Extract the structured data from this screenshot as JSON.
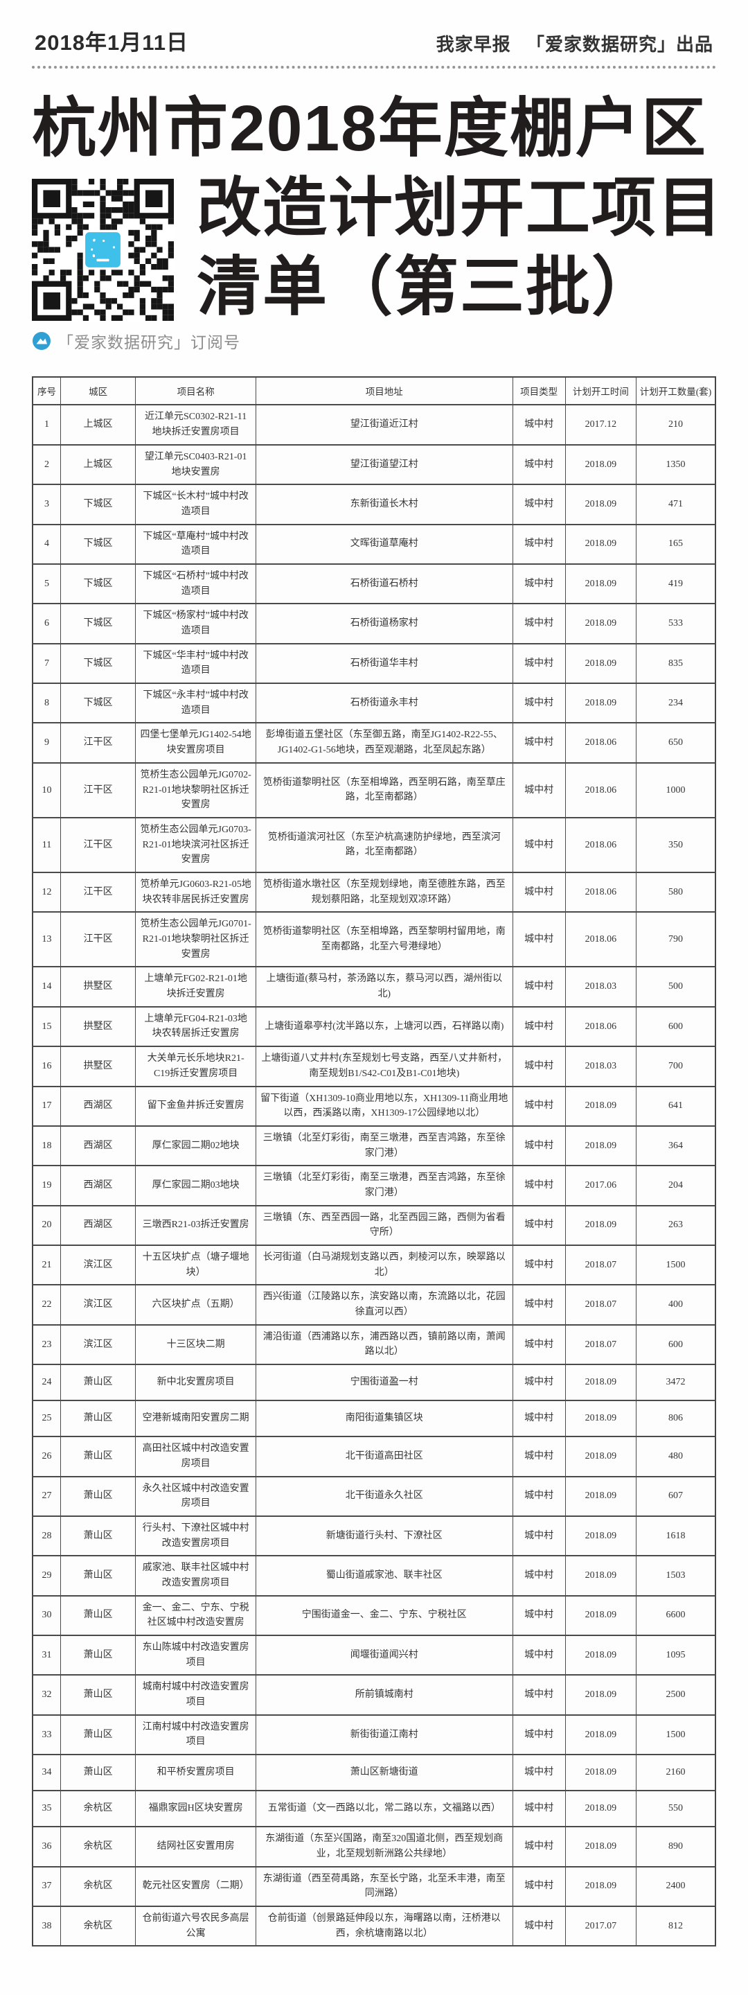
{
  "masthead": {
    "date": "2018年1月11日",
    "brand": "我家早报",
    "publisher": "「爱家数据研究」出品"
  },
  "title": {
    "line1": "杭州市2018年度棚户区",
    "line2": "改造计划开工项目",
    "line3": "清单（第三批）"
  },
  "qr": {
    "caption": "「爱家数据研究」订阅号"
  },
  "colors": {
    "logo_blue": "#2f9fd4",
    "qr_logo_cyan": "#3fc0ea",
    "qr_ink": "#161616",
    "border": "#4a4a4a",
    "title_ink": "#211d1d"
  },
  "table": {
    "col_keys": [
      "index",
      "district",
      "project_name",
      "project_address",
      "project_type",
      "planned_start_time",
      "planned_units"
    ],
    "headers": [
      "序号",
      "城区",
      "项目名称",
      "项目地址",
      "项目类型",
      "计划开工时间",
      "计划开工数量(套)"
    ],
    "rows": [
      [
        "1",
        "上城区",
        "近江单元SC0302-R21-11地块拆迁安置房项目",
        "望江街道近江村",
        "城中村",
        "2017.12",
        "210"
      ],
      [
        "2",
        "上城区",
        "望江单元SC0403-R21-01地块安置房",
        "望江街道望江村",
        "城中村",
        "2018.09",
        "1350"
      ],
      [
        "3",
        "下城区",
        "下城区“长木村”城中村改造项目",
        "东新街道长木村",
        "城中村",
        "2018.09",
        "471"
      ],
      [
        "4",
        "下城区",
        "下城区“草庵村”城中村改造项目",
        "文晖街道草庵村",
        "城中村",
        "2018.09",
        "165"
      ],
      [
        "5",
        "下城区",
        "下城区“石桥村”城中村改造项目",
        "石桥街道石桥村",
        "城中村",
        "2018.09",
        "419"
      ],
      [
        "6",
        "下城区",
        "下城区“杨家村”城中村改造项目",
        "石桥街道杨家村",
        "城中村",
        "2018.09",
        "533"
      ],
      [
        "7",
        "下城区",
        "下城区“华丰村”城中村改造项目",
        "石桥街道华丰村",
        "城中村",
        "2018.09",
        "835"
      ],
      [
        "8",
        "下城区",
        "下城区“永丰村”城中村改造项目",
        "石桥街道永丰村",
        "城中村",
        "2018.09",
        "234"
      ],
      [
        "9",
        "江干区",
        "四堡七堡单元JG1402-54地块安置房项目",
        "彭埠街道五堡社区（东至御五路，南至JG1402-R22-55、JG1402-G1-56地块，西至观潮路，北至凤起东路）",
        "城中村",
        "2018.06",
        "650"
      ],
      [
        "10",
        "江干区",
        "笕桥生态公园单元JG0702-R21-01地块黎明社区拆迁安置房",
        "笕桥街道黎明社区（东至相埠路，西至明石路，南至草庄路，北至南都路）",
        "城中村",
        "2018.06",
        "1000"
      ],
      [
        "11",
        "江干区",
        "笕桥生态公园单元JG0703-R21-01地块滨河社区拆迁安置房",
        "笕桥街道滨河社区（东至沪杭高速防护绿地，西至滨河路，北至南都路）",
        "城中村",
        "2018.06",
        "350"
      ],
      [
        "12",
        "江干区",
        "笕桥单元JG0603-R21-05地块农转非居民拆迁安置房",
        "笕桥街道水墩社区（东至规划绿地，南至德胜东路，西至规划蔡阳路，北至规划双凉环路）",
        "城中村",
        "2018.06",
        "580"
      ],
      [
        "13",
        "江干区",
        "笕桥生态公园单元JG0701-R21-01地块黎明社区拆迁安置房",
        "笕桥街道黎明社区（东至相埠路，西至黎明村留用地，南至南都路，北至六号港绿地）",
        "城中村",
        "2018.06",
        "790"
      ],
      [
        "14",
        "拱墅区",
        "上塘单元FG02-R21-01地块拆迁安置房",
        "上塘街道(蔡马村，茶汤路以东，蔡马河以西，湖州街以北)",
        "城中村",
        "2018.03",
        "500"
      ],
      [
        "15",
        "拱墅区",
        "上塘单元FG04-R21-03地块农转居拆迁安置房",
        "上塘街道皋亭村(沈半路以东，上塘河以西，石祥路以南)",
        "城中村",
        "2018.06",
        "600"
      ],
      [
        "16",
        "拱墅区",
        "大关单元长乐地块R21-C19拆迁安置房项目",
        "上塘街道八丈井村(东至规划七号支路，西至八丈井新村，南至规划B1/S42-C01及B1-C01地块)",
        "城中村",
        "2018.03",
        "700"
      ],
      [
        "17",
        "西湖区",
        "留下金鱼井拆迁安置房",
        "留下街道（XH1309-10商业用地以东，XH1309-11商业用地以西，西溪路以南，XH1309-17公园绿地以北）",
        "城中村",
        "2018.09",
        "641"
      ],
      [
        "18",
        "西湖区",
        "厚仁家园二期02地块",
        "三墩镇（北至灯彩街，南至三墩港，西至吉鸿路，东至徐家门港）",
        "城中村",
        "2018.09",
        "364"
      ],
      [
        "19",
        "西湖区",
        "厚仁家园二期03地块",
        "三墩镇（北至灯彩街，南至三墩港，西至吉鸿路，东至徐家门港）",
        "城中村",
        "2017.06",
        "204"
      ],
      [
        "20",
        "西湖区",
        "三墩西R21-03拆迁安置房",
        "三墩镇（东、西至西园一路，北至西园三路，西侧为省看守所）",
        "城中村",
        "2018.09",
        "263"
      ],
      [
        "21",
        "滨江区",
        "十五区块扩点（塘子堰地块）",
        "长河街道（白马湖规划支路以西，刺棱河以东，映翠路以北）",
        "城中村",
        "2018.07",
        "1500"
      ],
      [
        "22",
        "滨江区",
        "六区块扩点（五期）",
        "西兴街道（江陵路以东，滨安路以南，东流路以北，花园徐直河以西）",
        "城中村",
        "2018.07",
        "400"
      ],
      [
        "23",
        "滨江区",
        "十三区块二期",
        "浦沿街道（西浦路以东，浦西路以西，镇前路以南，萧闻路以北）",
        "城中村",
        "2018.07",
        "600"
      ],
      [
        "24",
        "萧山区",
        "新中北安置房项目",
        "宁围街道盈一村",
        "城中村",
        "2018.09",
        "3472"
      ],
      [
        "25",
        "萧山区",
        "空港新城南阳安置房二期",
        "南阳街道集镇区块",
        "城中村",
        "2018.09",
        "806"
      ],
      [
        "26",
        "萧山区",
        "高田社区城中村改造安置房项目",
        "北干街道高田社区",
        "城中村",
        "2018.09",
        "480"
      ],
      [
        "27",
        "萧山区",
        "永久社区城中村改造安置房项目",
        "北干街道永久社区",
        "城中村",
        "2018.09",
        "607"
      ],
      [
        "28",
        "萧山区",
        "行头村、下潦社区城中村改造安置房项目",
        "新塘街道行头村、下潦社区",
        "城中村",
        "2018.09",
        "1618"
      ],
      [
        "29",
        "萧山区",
        "戚家池、联丰社区城中村改造安置房项目",
        "蜀山街道戚家池、联丰社区",
        "城中村",
        "2018.09",
        "1503"
      ],
      [
        "30",
        "萧山区",
        "金一、金二、宁东、宁税社区城中村改造安置房",
        "宁围街道金一、金二、宁东、宁税社区",
        "城中村",
        "2018.09",
        "6600"
      ],
      [
        "31",
        "萧山区",
        "东山陈城中村改造安置房项目",
        "闻堰街道闻兴村",
        "城中村",
        "2018.09",
        "1095"
      ],
      [
        "32",
        "萧山区",
        "城南村城中村改造安置房项目",
        "所前镇城南村",
        "城中村",
        "2018.09",
        "2500"
      ],
      [
        "33",
        "萧山区",
        "江南村城中村改造安置房项目",
        "新街街道江南村",
        "城中村",
        "2018.09",
        "1500"
      ],
      [
        "34",
        "萧山区",
        "和平桥安置房项目",
        "萧山区新塘街道",
        "城中村",
        "2018.09",
        "2160"
      ],
      [
        "35",
        "余杭区",
        "福鼎家园H区块安置房",
        "五常街道（文一西路以北，常二路以东，文福路以西）",
        "城中村",
        "2018.09",
        "550"
      ],
      [
        "36",
        "余杭区",
        "结网社区安置用房",
        "东湖街道（东至兴国路，南至320国道北侧，西至规划商业，北至规划新洲路公共绿地）",
        "城中村",
        "2018.09",
        "890"
      ],
      [
        "37",
        "余杭区",
        "乾元社区安置房（二期）",
        "东湖街道（西至荷禹路，东至长宁路，北至禾丰港，南至同洲路）",
        "城中村",
        "2018.09",
        "2400"
      ],
      [
        "38",
        "余杭区",
        "仓前街道六号农民多高层公寓",
        "仓前街道（创景路延伸段以东，海曙路以南，汪桥港以西，余杭塘南路以北）",
        "城中村",
        "2017.07",
        "812"
      ]
    ]
  }
}
